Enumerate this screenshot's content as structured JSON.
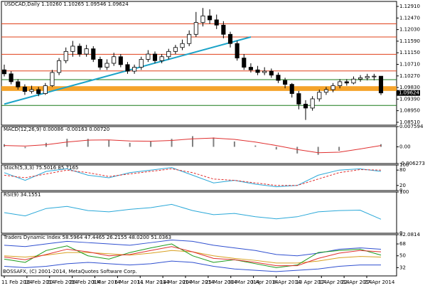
{
  "chart_data": {
    "type": "candlestick",
    "title": "USDCAD,Daily  1.10260 1.10265 1.09546 1.09624",
    "footer": "BOSSAFX, (C) 2001-2014, MetaQuotes Software Corp.",
    "ylim": [
      1.084,
      1.131
    ],
    "yticks": [
      {
        "value": 1.1291,
        "label": "1.12910"
      },
      {
        "value": 1.1247,
        "label": "1.12470"
      },
      {
        "value": 1.1203,
        "label": "1.12030"
      },
      {
        "value": 1.1159,
        "label": "1.11590"
      },
      {
        "value": 1.1115,
        "label": "1.11150"
      },
      {
        "value": 1.1071,
        "label": "1.10710"
      },
      {
        "value": 1.1027,
        "label": "1.10270"
      },
      {
        "value": 1.0983,
        "label": "1.09830"
      },
      {
        "value": 1.0939,
        "label": "1.09390"
      },
      {
        "value": 1.0895,
        "label": "1.08950"
      },
      {
        "value": 1.0851,
        "label": "1.08510"
      }
    ],
    "up_color": "#ffffff",
    "down_color": "#000000",
    "date_labels": [
      "11 Feb 2014",
      "16 Feb 2014",
      "20 Feb 2014",
      "26 Feb 2014",
      "3 Mar 2014",
      "6 Mar 2014",
      "11 Mar 2014",
      "14 Mar 2014",
      "20 Mar 2014",
      "25 Mar 2014",
      "30 Mar 2014",
      "3 Apr 2014",
      "8 Apr 2014",
      "13 Apr 2014",
      "17 Apr 2014",
      "22 Apr 2014",
      "27 Apr 2014"
    ],
    "candles": [
      {
        "open": 1.105,
        "high": 1.107,
        "low": 1.1025,
        "close": 1.1035
      },
      {
        "open": 1.1035,
        "high": 1.1045,
        "low": 1.0995,
        "close": 1.1005
      },
      {
        "open": 1.1005,
        "high": 1.1015,
        "low": 1.0975,
        "close": 1.0985
      },
      {
        "open": 1.0985,
        "high": 1.0995,
        "low": 1.0955,
        "close": 1.0968
      },
      {
        "open": 1.0968,
        "high": 1.099,
        "low": 1.096,
        "close": 1.0975
      },
      {
        "open": 1.0975,
        "high": 1.0985,
        "low": 1.095,
        "close": 1.096
      },
      {
        "open": 1.096,
        "high": 1.1,
        "low": 1.0955,
        "close": 1.099
      },
      {
        "open": 1.099,
        "high": 1.105,
        "low": 1.0985,
        "close": 1.104
      },
      {
        "open": 1.104,
        "high": 1.1095,
        "low": 1.103,
        "close": 1.1085
      },
      {
        "open": 1.1085,
        "high": 1.1135,
        "low": 1.1075,
        "close": 1.112
      },
      {
        "open": 1.112,
        "high": 1.116,
        "low": 1.11,
        "close": 1.114
      },
      {
        "open": 1.114,
        "high": 1.115,
        "low": 1.11,
        "close": 1.111
      },
      {
        "open": 1.111,
        "high": 1.1145,
        "low": 1.11,
        "close": 1.113
      },
      {
        "open": 1.113,
        "high": 1.114,
        "low": 1.108,
        "close": 1.109
      },
      {
        "open": 1.109,
        "high": 1.11,
        "low": 1.105,
        "close": 1.106
      },
      {
        "open": 1.106,
        "high": 1.109,
        "low": 1.105,
        "close": 1.1075
      },
      {
        "open": 1.1075,
        "high": 1.1115,
        "low": 1.1065,
        "close": 1.11
      },
      {
        "open": 1.11,
        "high": 1.111,
        "low": 1.106,
        "close": 1.107
      },
      {
        "open": 1.107,
        "high": 1.108,
        "low": 1.1035,
        "close": 1.1045
      },
      {
        "open": 1.1045,
        "high": 1.107,
        "low": 1.1035,
        "close": 1.106
      },
      {
        "open": 1.106,
        "high": 1.11,
        "low": 1.105,
        "close": 1.109
      },
      {
        "open": 1.109,
        "high": 1.1125,
        "low": 1.108,
        "close": 1.111
      },
      {
        "open": 1.111,
        "high": 1.112,
        "low": 1.1075,
        "close": 1.1085
      },
      {
        "open": 1.1085,
        "high": 1.111,
        "low": 1.1075,
        "close": 1.11
      },
      {
        "open": 1.11,
        "high": 1.113,
        "low": 1.109,
        "close": 1.112
      },
      {
        "open": 1.112,
        "high": 1.1145,
        "low": 1.111,
        "close": 1.1135
      },
      {
        "open": 1.1135,
        "high": 1.1165,
        "low": 1.1125,
        "close": 1.115
      },
      {
        "open": 1.115,
        "high": 1.12,
        "low": 1.114,
        "close": 1.1185
      },
      {
        "open": 1.1185,
        "high": 1.127,
        "low": 1.1175,
        "close": 1.123
      },
      {
        "open": 1.123,
        "high": 1.1285,
        "low": 1.1215,
        "close": 1.1255
      },
      {
        "open": 1.1255,
        "high": 1.128,
        "low": 1.1225,
        "close": 1.124
      },
      {
        "open": 1.124,
        "high": 1.126,
        "low": 1.1205,
        "close": 1.122
      },
      {
        "open": 1.122,
        "high": 1.1235,
        "low": 1.117,
        "close": 1.1185
      },
      {
        "open": 1.1185,
        "high": 1.1195,
        "low": 1.1135,
        "close": 1.115
      },
      {
        "open": 1.115,
        "high": 1.116,
        "low": 1.1085,
        "close": 1.1095
      },
      {
        "open": 1.1095,
        "high": 1.111,
        "low": 1.105,
        "close": 1.106
      },
      {
        "open": 1.106,
        "high": 1.1075,
        "low": 1.104,
        "close": 1.105
      },
      {
        "open": 1.105,
        "high": 1.1065,
        "low": 1.103,
        "close": 1.104
      },
      {
        "open": 1.104,
        "high": 1.106,
        "low": 1.103,
        "close": 1.1045
      },
      {
        "open": 1.1045,
        "high": 1.1055,
        "low": 1.102,
        "close": 1.103
      },
      {
        "open": 1.103,
        "high": 1.104,
        "low": 1.1,
        "close": 1.101
      },
      {
        "open": 1.101,
        "high": 1.102,
        "low": 1.098,
        "close": 1.0995
      },
      {
        "open": 1.0995,
        "high": 1.1,
        "low": 1.0945,
        "close": 1.096
      },
      {
        "open": 1.096,
        "high": 1.097,
        "low": 1.09,
        "close": 1.092
      },
      {
        "open": 1.092,
        "high": 1.0935,
        "low": 1.086,
        "close": 1.0905
      },
      {
        "open": 1.0905,
        "high": 1.095,
        "low": 1.0895,
        "close": 1.094
      },
      {
        "open": 1.094,
        "high": 1.0975,
        "low": 1.093,
        "close": 1.0965
      },
      {
        "open": 1.0965,
        "high": 1.0985,
        "low": 1.0955,
        "close": 1.0975
      },
      {
        "open": 1.0975,
        "high": 1.1,
        "low": 1.0965,
        "close": 1.099
      },
      {
        "open": 1.099,
        "high": 1.1015,
        "low": 1.098,
        "close": 1.1005
      },
      {
        "open": 1.1005,
        "high": 1.1015,
        "low": 1.099,
        "close": 1.1
      },
      {
        "open": 1.1,
        "high": 1.1025,
        "low": 1.0995,
        "close": 1.1015
      },
      {
        "open": 1.1015,
        "high": 1.103,
        "low": 1.1005,
        "close": 1.102
      },
      {
        "open": 1.102,
        "high": 1.1035,
        "low": 1.101,
        "close": 1.1025
      },
      {
        "open": 1.1025,
        "high": 1.1035,
        "low": 1.101,
        "close": 1.1026
      },
      {
        "open": 1.1026,
        "high": 1.10265,
        "low": 1.09546,
        "close": 1.09624
      }
    ],
    "zones": [
      {
        "from": 1.097,
        "to": 1.0988,
        "color": "#f5a32a"
      }
    ],
    "levels": [
      {
        "value": 1.1225,
        "color": "#e0401a"
      },
      {
        "value": 1.1175,
        "color": "#e0401a"
      },
      {
        "value": 1.1109,
        "color": "#e0401a"
      },
      {
        "value": 1.1046,
        "color": "#e0401a"
      },
      {
        "value": 1.1013,
        "color": "#1a7a1a"
      },
      {
        "value": 1.0915,
        "color": "#1a7a1a"
      }
    ],
    "trendline": {
      "color": "#1aa3c8",
      "x": [
        0,
        36
      ],
      "values": [
        1.092,
        1.1175
      ]
    },
    "panels": [
      {
        "title": "MACD(12,26,9) 0.00086 -0.00163 0.00720",
        "ylim": [
          -0.006273,
          0.007594
        ],
        "yticks": [
          {
            "value": 0.007594,
            "label": "0.007594"
          },
          {
            "value": 0,
            "label": "0.00"
          },
          {
            "value": -0.006273,
            "label": "-0.006273"
          }
        ],
        "series": [
          {
            "style": "hist",
            "color": "#808080",
            "values": [
              0.001,
              -0.0005,
              0.0015,
              0.003,
              0.003,
              0.0025,
              0.0015,
              0.002,
              0.003,
              0.004,
              0.0035,
              0.002,
              0.0005,
              -0.001,
              -0.0025,
              -0.003,
              -0.0015,
              0.0,
              0.001
            ]
          },
          {
            "style": "line",
            "color": "#e03030",
            "values": [
              0.0005,
              0.0003,
              0.0008,
              0.0018,
              0.0025,
              0.0026,
              0.0022,
              0.0021,
              0.0024,
              0.003,
              0.0033,
              0.0028,
              0.0018,
              0.0005,
              -0.001,
              -0.0022,
              -0.002,
              -0.0008,
              0.0005
            ]
          }
        ]
      },
      {
        "title": "Stoch(5,3,3) 75.5016 85.7165",
        "ylim": [
          0,
          100
        ],
        "yticks": [
          100,
          80,
          20,
          0
        ],
        "series": [
          {
            "style": "line",
            "color": "#2aa8d8",
            "values": [
              70,
              40,
              75,
              85,
              60,
              50,
              70,
              80,
              90,
              60,
              30,
              40,
              25,
              15,
              20,
              60,
              80,
              85,
              75
            ]
          },
          {
            "style": "dash",
            "color": "#e03030",
            "values": [
              60,
              50,
              65,
              80,
              70,
              55,
              65,
              75,
              85,
              70,
              45,
              40,
              30,
              20,
              20,
              45,
              70,
              82,
              80
            ]
          }
        ]
      },
      {
        "title": "RSI(9) 34.1551",
        "ylim": [
          0,
          100
        ],
        "yticks": [
          100,
          0
        ],
        "series": [
          {
            "style": "line",
            "color": "#2aa8d8",
            "values": [
              50,
              42,
              60,
              65,
              55,
              52,
              58,
              62,
              70,
              55,
              45,
              48,
              40,
              35,
              40,
              52,
              55,
              56,
              34
            ]
          }
        ]
      },
      {
        "title": "Traders Dynamic Index 58.5964 47.4465 26.2155 48.0200 51.0363",
        "ylim": [
          19.4439,
          82.0814
        ],
        "yticks": [
          82.0814,
          68,
          50,
          32
        ],
        "series": [
          {
            "style": "line",
            "color": "#3050d0",
            "values": [
              66,
              64,
              68,
              72,
              70,
              68,
              66,
              70,
              74,
              72,
              66,
              62,
              58,
              52,
              50,
              54,
              60,
              62,
              60
            ]
          },
          {
            "style": "line",
            "color": "#3050d0",
            "values": [
              34,
              32,
              34,
              38,
              40,
              38,
              36,
              38,
              42,
              40,
              34,
              30,
              28,
              26,
              28,
              30,
              34,
              36,
              36
            ]
          },
          {
            "style": "line",
            "color": "#d8a020",
            "values": [
              50,
              48,
              51,
              55,
              55,
              53,
              51,
              54,
              58,
              56,
              50,
              46,
              43,
              39,
              39,
              42,
              47,
              49,
              48
            ]
          },
          {
            "style": "line",
            "color": "#1a9a1a",
            "values": [
              45,
              40,
              58,
              65,
              50,
              45,
              55,
              62,
              68,
              50,
              40,
              44,
              38,
              32,
              36,
              55,
              58,
              60,
              51
            ]
          },
          {
            "style": "line",
            "color": "#e03030",
            "values": [
              48,
              44,
              52,
              60,
              56,
              50,
              52,
              58,
              64,
              56,
              46,
              44,
              40,
              35,
              35,
              46,
              54,
              58,
              56
            ]
          }
        ]
      }
    ]
  }
}
